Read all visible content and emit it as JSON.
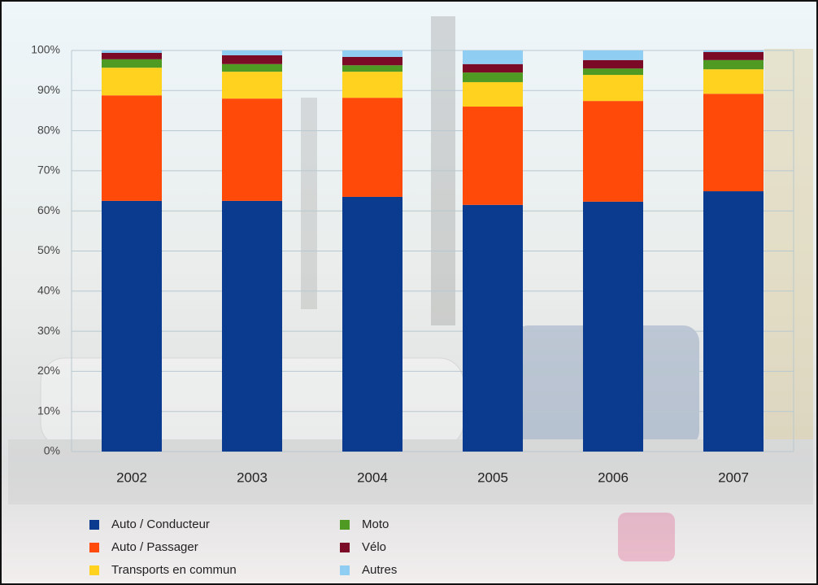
{
  "chart_data": {
    "type": "stacked_bar",
    "categories": [
      "2002",
      "2003",
      "2004",
      "2005",
      "2006",
      "2007"
    ],
    "series": [
      {
        "name": "Auto / Conducteur",
        "color": "#0b3b8f",
        "values": [
          62.5,
          62.5,
          63.5,
          61.5,
          62.3,
          64.9
        ]
      },
      {
        "name": "Auto / Passager",
        "color": "#ff4a0a",
        "values": [
          26.3,
          25.5,
          24.7,
          24.5,
          25.1,
          24.3
        ]
      },
      {
        "name": "Transports en commun",
        "color": "#ffd21f",
        "values": [
          6.9,
          6.7,
          6.5,
          6.1,
          6.5,
          6.1
        ]
      },
      {
        "name": "Moto",
        "color": "#4f9a22",
        "values": [
          2.1,
          1.9,
          1.6,
          2.4,
          1.6,
          2.3
        ]
      },
      {
        "name": "Vélo",
        "color": "#7a0a25",
        "values": [
          1.6,
          2.2,
          2.1,
          2.1,
          2.1,
          2.0
        ]
      },
      {
        "name": "Autres",
        "color": "#8fcdf2",
        "values": [
          0.6,
          1.2,
          1.6,
          3.4,
          2.4,
          0.4
        ]
      }
    ],
    "ylim": [
      0,
      100
    ],
    "yticks": [
      {
        "value": 0,
        "label": "0%"
      },
      {
        "value": 10,
        "label": "10%"
      },
      {
        "value": 20,
        "label": "20%"
      },
      {
        "value": 30,
        "label": "30%"
      },
      {
        "value": 40,
        "label": "40%"
      },
      {
        "value": 50,
        "label": "50%"
      },
      {
        "value": 60,
        "label": "60%"
      },
      {
        "value": 70,
        "label": "70%"
      },
      {
        "value": 80,
        "label": "80%"
      },
      {
        "value": 90,
        "label": "90%"
      },
      {
        "value": 100,
        "label": "100%"
      }
    ],
    "grid": true
  }
}
